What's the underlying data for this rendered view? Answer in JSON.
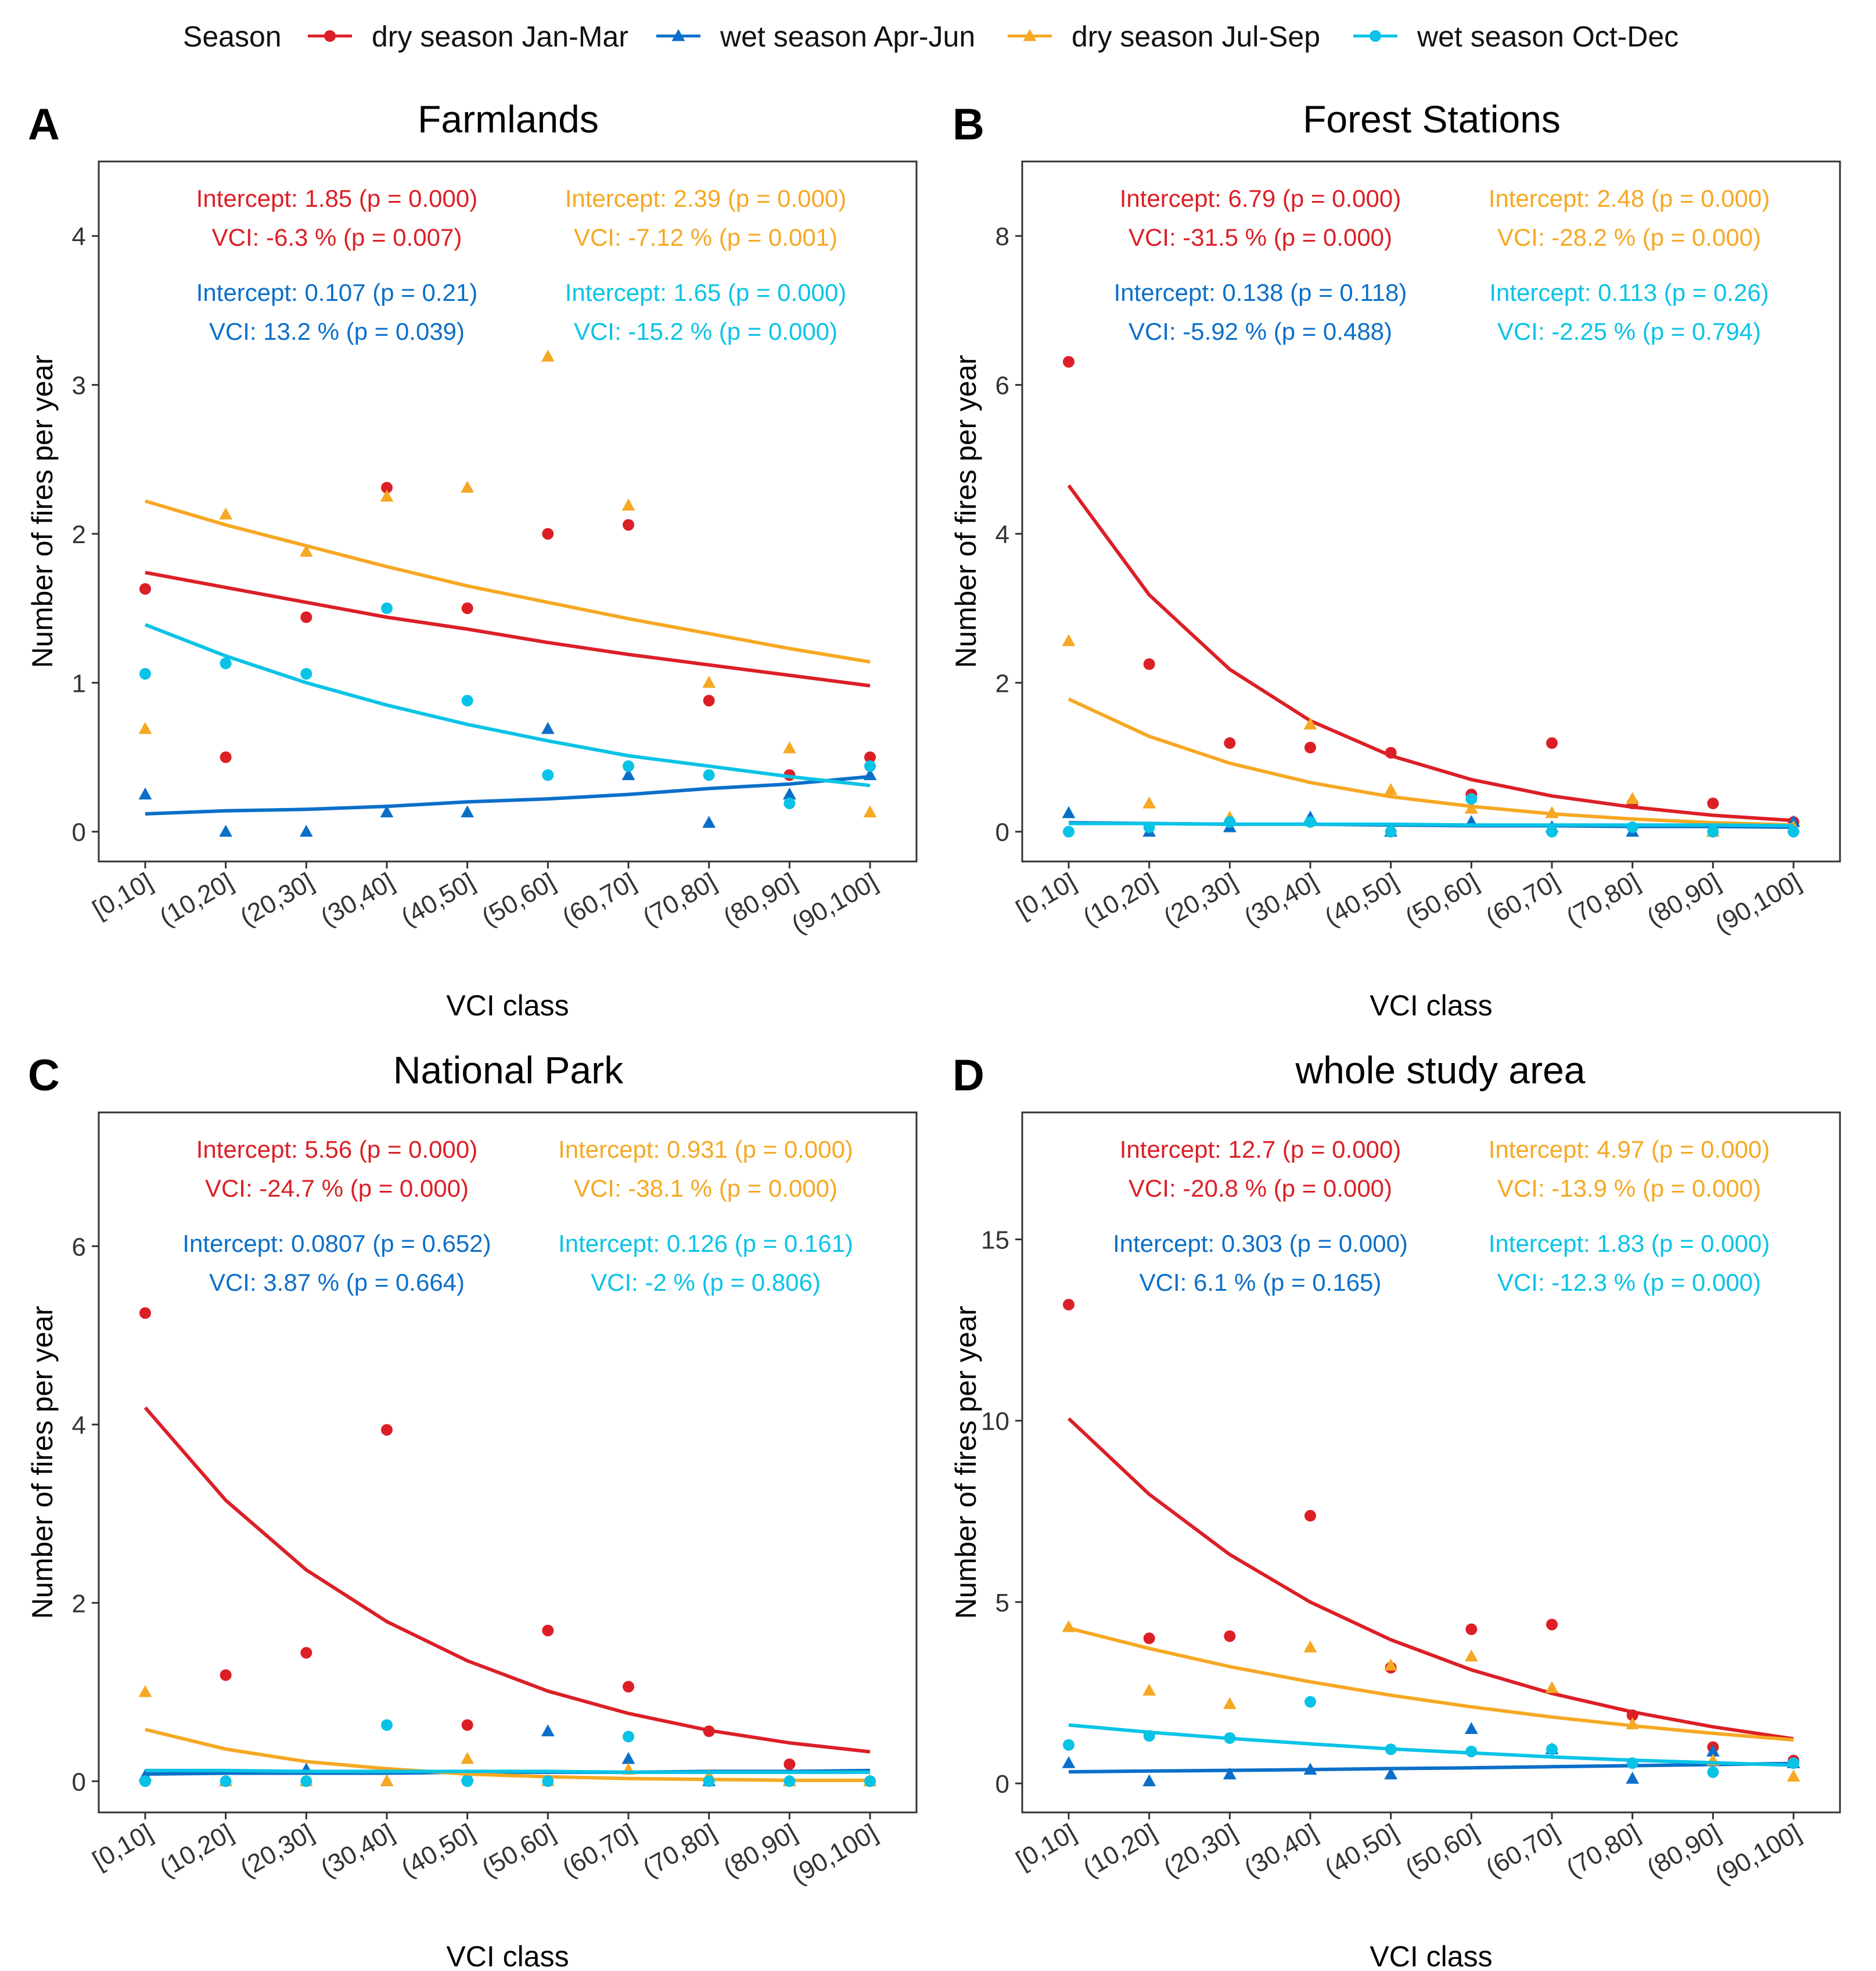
{
  "legend": {
    "title": "Season",
    "items": [
      {
        "label": "dry season Jan-Mar",
        "marker": "circle",
        "color": "#dc1f26"
      },
      {
        "label": "wet season Apr-Jun",
        "marker": "triangle",
        "color": "#0b6fc9"
      },
      {
        "label": "dry season Jul-Sep",
        "marker": "triangle",
        "color": "#f6a823"
      },
      {
        "label": "wet season Oct-Dec",
        "marker": "circle",
        "color": "#09c3e6"
      }
    ]
  },
  "chart_data": [
    {
      "type": "scatter",
      "panel_letter": "A",
      "title": "Farmlands",
      "xlabel": "VCI class",
      "ylabel": "Number of fires per year",
      "categories": [
        "[0,10]",
        "(10,20]",
        "(20,30]",
        "(30,40]",
        "(40,50]",
        "(50,60]",
        "(60,70]",
        "(70,80]",
        "(80,90]",
        "(90,100]"
      ],
      "ylim": [
        -0.2,
        4.5
      ],
      "yticks": [
        0,
        1,
        2,
        3,
        4
      ],
      "grid": false,
      "legend_position": "top",
      "series": [
        {
          "name": "dry season Jan-Mar",
          "values": [
            1.63,
            0.5,
            1.44,
            2.31,
            1.5,
            2.0,
            2.06,
            0.88,
            0.38,
            0.5
          ],
          "fit": [
            1.74,
            1.64,
            1.54,
            1.44,
            1.36,
            1.27,
            1.19,
            1.12,
            1.05,
            0.98
          ]
        },
        {
          "name": "wet season Apr-Jun",
          "values": [
            0.25,
            0.0,
            0.0,
            0.13,
            0.13,
            0.69,
            0.38,
            0.06,
            0.25,
            0.38
          ],
          "fit": [
            0.12,
            0.14,
            0.15,
            0.17,
            0.2,
            0.22,
            0.25,
            0.29,
            0.32,
            0.37
          ]
        },
        {
          "name": "dry season Jul-Sep",
          "values": [
            0.69,
            2.13,
            1.88,
            2.25,
            2.31,
            3.19,
            2.19,
            1.0,
            0.56,
            0.13
          ],
          "fit": [
            2.22,
            2.06,
            1.92,
            1.78,
            1.65,
            1.54,
            1.43,
            1.33,
            1.23,
            1.14
          ]
        },
        {
          "name": "wet season Oct-Dec",
          "values": [
            1.06,
            1.13,
            1.06,
            1.5,
            0.88,
            0.38,
            0.44,
            0.38,
            0.19,
            0.44
          ],
          "fit": [
            1.39,
            1.18,
            1.0,
            0.85,
            0.72,
            0.61,
            0.51,
            0.44,
            0.37,
            0.31
          ]
        }
      ],
      "annotations": [
        {
          "color": "#dc1f26",
          "position": "top-left",
          "lines": [
            "Intercept: 1.85 (p = 0.000)",
            "VCI: -6.3 % (p = 0.007)"
          ]
        },
        {
          "color": "#f6a823",
          "position": "top-right",
          "lines": [
            "Intercept: 2.39 (p = 0.000)",
            "VCI: -7.12 % (p = 0.001)"
          ]
        },
        {
          "color": "#0b6fc9",
          "position": "second-left",
          "lines": [
            "Intercept: 0.107 (p = 0.21)",
            "VCI: 13.2 % (p = 0.039)"
          ]
        },
        {
          "color": "#09c3e6",
          "position": "second-right",
          "lines": [
            "Intercept: 1.65 (p = 0.000)",
            "VCI: -15.2 % (p = 0.000)"
          ]
        }
      ]
    },
    {
      "type": "scatter",
      "panel_letter": "B",
      "title": "Forest Stations",
      "xlabel": "VCI class",
      "ylabel": "Number of fires per year",
      "categories": [
        "[0,10]",
        "(10,20]",
        "(20,30]",
        "(30,40]",
        "(40,50]",
        "(50,60]",
        "(60,70]",
        "(70,80]",
        "(80,90]",
        "(90,100]"
      ],
      "ylim": [
        -0.4,
        9.0
      ],
      "yticks": [
        0,
        2,
        4,
        6,
        8
      ],
      "grid": false,
      "series": [
        {
          "name": "dry season Jan-Mar",
          "values": [
            6.31,
            2.25,
            1.19,
            1.13,
            1.06,
            0.5,
            1.19,
            0.38,
            0.38,
            0.13
          ],
          "fit": [
            4.65,
            3.18,
            2.18,
            1.49,
            1.02,
            0.7,
            0.48,
            0.33,
            0.22,
            0.15
          ]
        },
        {
          "name": "wet season Apr-Jun",
          "values": [
            0.25,
            0.0,
            0.06,
            0.19,
            0.0,
            0.13,
            0.06,
            0.0,
            0.0,
            0.13
          ],
          "fit": [
            0.12,
            0.11,
            0.1,
            0.1,
            0.09,
            0.08,
            0.08,
            0.07,
            0.07,
            0.06
          ]
        },
        {
          "name": "dry season Jul-Sep",
          "values": [
            2.56,
            0.38,
            0.19,
            1.44,
            0.56,
            0.31,
            0.25,
            0.44,
            0.0,
            0.06
          ],
          "fit": [
            1.78,
            1.28,
            0.92,
            0.66,
            0.47,
            0.34,
            0.24,
            0.17,
            0.12,
            0.09
          ]
        },
        {
          "name": "wet season Oct-Dec",
          "values": [
            0.0,
            0.06,
            0.13,
            0.13,
            0.0,
            0.44,
            0.0,
            0.06,
            0.0,
            0.0
          ],
          "fit": [
            0.11,
            0.11,
            0.1,
            0.1,
            0.1,
            0.09,
            0.09,
            0.09,
            0.09,
            0.08
          ]
        }
      ],
      "annotations": [
        {
          "color": "#dc1f26",
          "position": "top-left",
          "lines": [
            "Intercept: 6.79 (p = 0.000)",
            "VCI: -31.5 % (p = 0.000)"
          ]
        },
        {
          "color": "#f6a823",
          "position": "top-right",
          "lines": [
            "Intercept: 2.48 (p = 0.000)",
            "VCI: -28.2 % (p = 0.000)"
          ]
        },
        {
          "color": "#0b6fc9",
          "position": "second-left",
          "lines": [
            "Intercept: 0.138 (p = 0.118)",
            "VCI: -5.92 % (p = 0.488)"
          ]
        },
        {
          "color": "#09c3e6",
          "position": "second-right",
          "lines": [
            "Intercept: 0.113 (p = 0.26)",
            "VCI: -2.25 % (p = 0.794)"
          ]
        }
      ]
    },
    {
      "type": "scatter",
      "panel_letter": "C",
      "title": "National Park",
      "xlabel": "VCI class",
      "ylabel": "Number of fires per year",
      "categories": [
        "[0,10]",
        "(10,20]",
        "(20,30]",
        "(30,40]",
        "(40,50]",
        "(50,60]",
        "(60,70]",
        "(70,80]",
        "(80,90]",
        "(90,100]"
      ],
      "ylim": [
        -0.35,
        7.5
      ],
      "yticks": [
        0,
        2,
        4,
        6
      ],
      "grid": false,
      "series": [
        {
          "name": "dry season Jan-Mar",
          "values": [
            5.25,
            1.19,
            1.44,
            3.94,
            0.63,
            1.69,
            1.06,
            0.56,
            0.19,
            0.0
          ],
          "fit": [
            4.19,
            3.15,
            2.37,
            1.79,
            1.35,
            1.01,
            0.76,
            0.57,
            0.43,
            0.33
          ]
        },
        {
          "name": "wet season Apr-Jun",
          "values": [
            0.06,
            0.0,
            0.13,
            0.0,
            0.06,
            0.56,
            0.25,
            0.0,
            0.0,
            0.0
          ],
          "fit": [
            0.08,
            0.09,
            0.09,
            0.09,
            0.1,
            0.1,
            0.1,
            0.11,
            0.11,
            0.12
          ]
        },
        {
          "name": "dry season Jul-Sep",
          "values": [
            1.0,
            0.0,
            0.0,
            0.0,
            0.25,
            0.0,
            0.13,
            0.06,
            0.0,
            0.0
          ],
          "fit": [
            0.58,
            0.36,
            0.22,
            0.14,
            0.08,
            0.05,
            0.03,
            0.02,
            0.01,
            0.01
          ]
        },
        {
          "name": "wet season Oct-Dec",
          "values": [
            0.0,
            0.0,
            0.0,
            0.63,
            0.0,
            0.0,
            0.5,
            0.0,
            0.0,
            0.0
          ],
          "fit": [
            0.12,
            0.12,
            0.11,
            0.11,
            0.11,
            0.11,
            0.1,
            0.1,
            0.1,
            0.1
          ]
        }
      ],
      "annotations": [
        {
          "color": "#dc1f26",
          "position": "top-left",
          "lines": [
            "Intercept: 5.56 (p = 0.000)",
            "VCI: -24.7 % (p = 0.000)"
          ]
        },
        {
          "color": "#f6a823",
          "position": "top-right",
          "lines": [
            "Intercept: 0.931 (p = 0.000)",
            "VCI: -38.1 % (p = 0.000)"
          ]
        },
        {
          "color": "#0b6fc9",
          "position": "second-left",
          "lines": [
            "Intercept: 0.0807 (p = 0.652)",
            "VCI: 3.87 % (p = 0.664)"
          ]
        },
        {
          "color": "#09c3e6",
          "position": "second-right",
          "lines": [
            "Intercept: 0.126 (p = 0.161)",
            "VCI: -2 % (p = 0.806)"
          ]
        }
      ]
    },
    {
      "type": "scatter",
      "panel_letter": "D",
      "title": "whole study area",
      "xlabel": "VCI class",
      "ylabel": "Number of fires per year",
      "categories": [
        "[0,10]",
        "(10,20]",
        "(20,30]",
        "(30,40]",
        "(40,50]",
        "(50,60]",
        "(60,70]",
        "(70,80]",
        "(80,90]",
        "(90,100]"
      ],
      "ylim": [
        -0.8,
        18.5
      ],
      "yticks": [
        0,
        5,
        10,
        15
      ],
      "grid": false,
      "series": [
        {
          "name": "dry season Jan-Mar",
          "values": [
            13.2,
            4.0,
            4.06,
            7.38,
            3.19,
            4.25,
            4.38,
            1.88,
            1.0,
            0.63
          ],
          "fit": [
            10.06,
            7.97,
            6.31,
            5.0,
            3.96,
            3.13,
            2.48,
            1.97,
            1.56,
            1.23
          ]
        },
        {
          "name": "wet season Apr-Jun",
          "values": [
            0.56,
            0.06,
            0.25,
            0.38,
            0.25,
            1.5,
            0.94,
            0.13,
            0.88,
            0.56
          ],
          "fit": [
            0.32,
            0.34,
            0.36,
            0.38,
            0.41,
            0.43,
            0.46,
            0.49,
            0.52,
            0.55
          ]
        },
        {
          "name": "dry season Jul-Sep",
          "values": [
            4.31,
            2.56,
            2.19,
            3.75,
            3.25,
            3.5,
            2.63,
            1.63,
            0.63,
            0.19
          ],
          "fit": [
            4.28,
            3.72,
            3.22,
            2.8,
            2.43,
            2.11,
            1.83,
            1.59,
            1.38,
            1.2
          ]
        },
        {
          "name": "wet season Oct-Dec",
          "values": [
            1.06,
            1.31,
            1.25,
            2.25,
            0.94,
            0.88,
            0.94,
            0.56,
            0.31,
            0.56
          ],
          "fit": [
            1.61,
            1.41,
            1.24,
            1.09,
            0.95,
            0.84,
            0.73,
            0.64,
            0.57,
            0.5
          ]
        }
      ],
      "annotations": [
        {
          "color": "#dc1f26",
          "position": "top-left",
          "lines": [
            "Intercept: 12.7 (p = 0.000)",
            "VCI: -20.8 % (p = 0.000)"
          ]
        },
        {
          "color": "#f6a823",
          "position": "top-right",
          "lines": [
            "Intercept: 4.97 (p = 0.000)",
            "VCI: -13.9 % (p = 0.000)"
          ]
        },
        {
          "color": "#0b6fc9",
          "position": "second-left",
          "lines": [
            "Intercept: 0.303 (p = 0.000)",
            "VCI: 6.1 % (p = 0.165)"
          ]
        },
        {
          "color": "#09c3e6",
          "position": "second-right",
          "lines": [
            "Intercept: 1.83 (p = 0.000)",
            "VCI: -12.3 % (p = 0.000)"
          ]
        }
      ]
    }
  ]
}
